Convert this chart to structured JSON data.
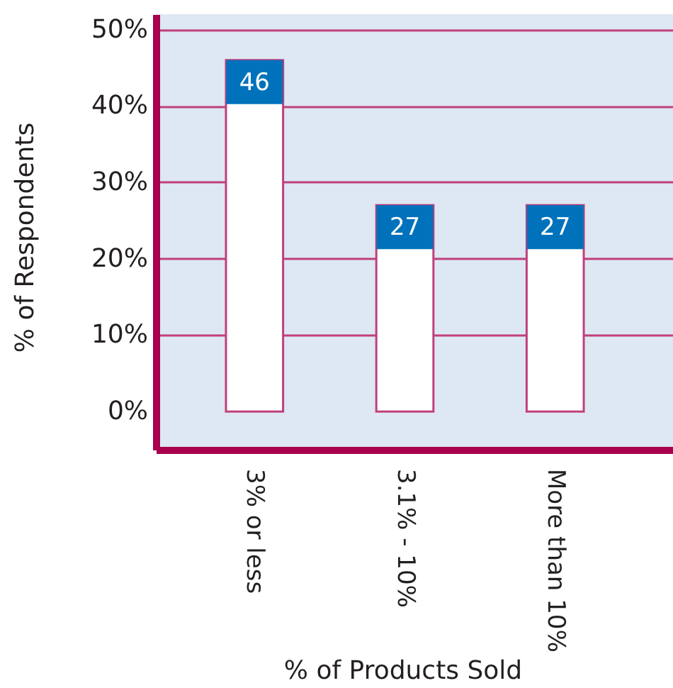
{
  "chart_data": {
    "type": "bar",
    "categories": [
      "3% or less",
      "3.1% - 10%",
      "More than 10%"
    ],
    "values": [
      46,
      27,
      27
    ],
    "color": "#ffffff",
    "data_labels": true,
    "xlabel": "% of Products Sold",
    "ylabel": "% of Respondents",
    "ylim": [
      -5,
      52
    ],
    "yticks": [
      {
        "value": 0,
        "label": "0%"
      },
      {
        "value": 10,
        "label": "10%"
      },
      {
        "value": 20,
        "label": "20%"
      },
      {
        "value": 30,
        "label": "30%"
      },
      {
        "value": 40,
        "label": "40%"
      },
      {
        "value": 50,
        "label": "50%"
      }
    ],
    "grid": "y"
  }
}
